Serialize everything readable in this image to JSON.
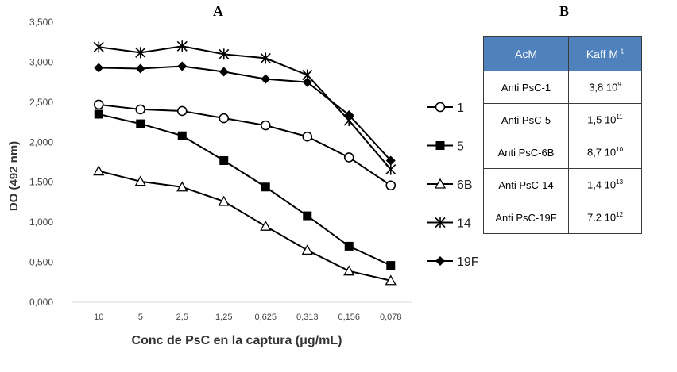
{
  "chart_data": {
    "type": "line",
    "panel_label": "A",
    "xlabel": "Conc de PsC en la captura (μg/mL)",
    "ylabel": "DO (492 nm)",
    "categories": [
      "10",
      "5",
      "2,5",
      "1,25",
      "0,625",
      "0,313",
      "0,156",
      "0,078"
    ],
    "y_ticks": [
      "0,000",
      "0,500",
      "1,000",
      "1,500",
      "2,000",
      "2,500",
      "3,000",
      "3,500"
    ],
    "ylim": [
      0,
      3.5
    ],
    "legend_position": "right",
    "series": [
      {
        "name": "1",
        "marker": "circle",
        "values": [
          2.47,
          2.41,
          2.39,
          2.3,
          2.21,
          2.07,
          1.81,
          1.46
        ]
      },
      {
        "name": "5",
        "marker": "square",
        "values": [
          2.35,
          2.23,
          2.08,
          1.77,
          1.44,
          1.08,
          0.7,
          0.46
        ]
      },
      {
        "name": "6B",
        "marker": "triangle",
        "values": [
          1.64,
          1.51,
          1.44,
          1.26,
          0.95,
          0.65,
          0.39,
          0.27
        ]
      },
      {
        "name": "14",
        "marker": "star",
        "values": [
          3.19,
          3.12,
          3.2,
          3.1,
          3.05,
          2.84,
          2.27,
          1.66
        ]
      },
      {
        "name": "19F",
        "marker": "diamond",
        "values": [
          2.93,
          2.92,
          2.95,
          2.88,
          2.79,
          2.75,
          2.34,
          1.77
        ]
      }
    ],
    "line_color": "#000000"
  },
  "table": {
    "panel_label": "B",
    "headers": {
      "col1": "AcM",
      "col2_base": "Kaff  M",
      "col2_sup": "-1"
    },
    "header_color": "#4f81bd",
    "rows": [
      {
        "name": "Anti PsC-1",
        "mantissa": "3,8 10",
        "exp": "9"
      },
      {
        "name": "Anti PsC-5",
        "mantissa": "1,5  10",
        "exp": "11"
      },
      {
        "name": "Anti PsC-6B",
        "mantissa": "8,7 10",
        "exp": "10"
      },
      {
        "name": "Anti PsC-14",
        "mantissa": "1,4 10",
        "exp": "13"
      },
      {
        "name": "Anti PsC-19F",
        "mantissa": "7.2 10",
        "exp": "12"
      }
    ]
  }
}
